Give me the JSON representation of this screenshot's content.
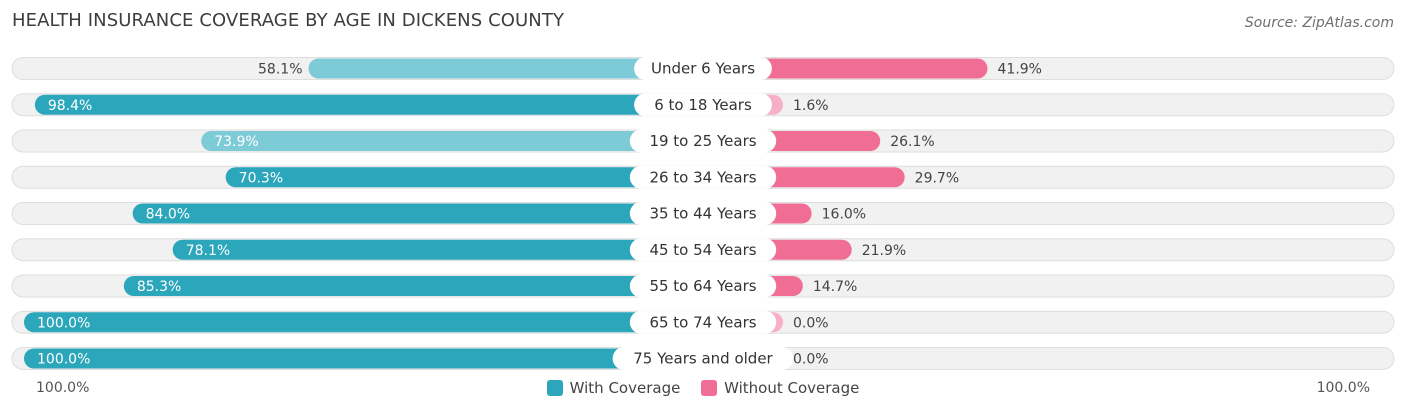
{
  "header": {
    "title": "HEALTH INSURANCE COVERAGE BY AGE IN DICKENS COUNTY",
    "source": "Source: ZipAtlas.com"
  },
  "axis": {
    "left_label": "100.0%",
    "right_label": "100.0%"
  },
  "legend": {
    "with_label": "With Coverage",
    "without_label": "Without Coverage"
  },
  "colors": {
    "with_dark": "#2ba6ba",
    "with_light": "#7dcbd6",
    "without_dark": "#f06d96",
    "without_light": "#f7afc6",
    "track": "#f1f1f1",
    "track_border": "#dedede"
  },
  "chart_data": {
    "type": "bar",
    "orientation": "horizontal-diverging",
    "title": "HEALTH INSURANCE COVERAGE BY AGE IN DICKENS COUNTY",
    "categories": [
      "Under 6 Years",
      "6 to 18 Years",
      "19 to 25 Years",
      "26 to 34 Years",
      "35 to 44 Years",
      "45 to 54 Years",
      "55 to 64 Years",
      "65 to 74 Years",
      "75 Years and older"
    ],
    "series": [
      {
        "name": "With Coverage",
        "values": [
          58.1,
          98.4,
          73.9,
          70.3,
          84.0,
          78.1,
          85.3,
          100.0,
          100.0
        ]
      },
      {
        "name": "Without Coverage",
        "values": [
          41.9,
          1.6,
          26.1,
          29.7,
          16.0,
          21.9,
          14.7,
          0.0,
          0.0
        ]
      }
    ],
    "with_labels": [
      "58.1%",
      "98.4%",
      "73.9%",
      "70.3%",
      "84.0%",
      "78.1%",
      "85.3%",
      "100.0%",
      "100.0%"
    ],
    "without_labels": [
      "41.9%",
      "1.6%",
      "26.1%",
      "29.7%",
      "16.0%",
      "21.9%",
      "14.7%",
      "0.0%",
      "0.0%"
    ],
    "xlim": [
      0,
      100
    ],
    "legend_position": "bottom-center"
  }
}
